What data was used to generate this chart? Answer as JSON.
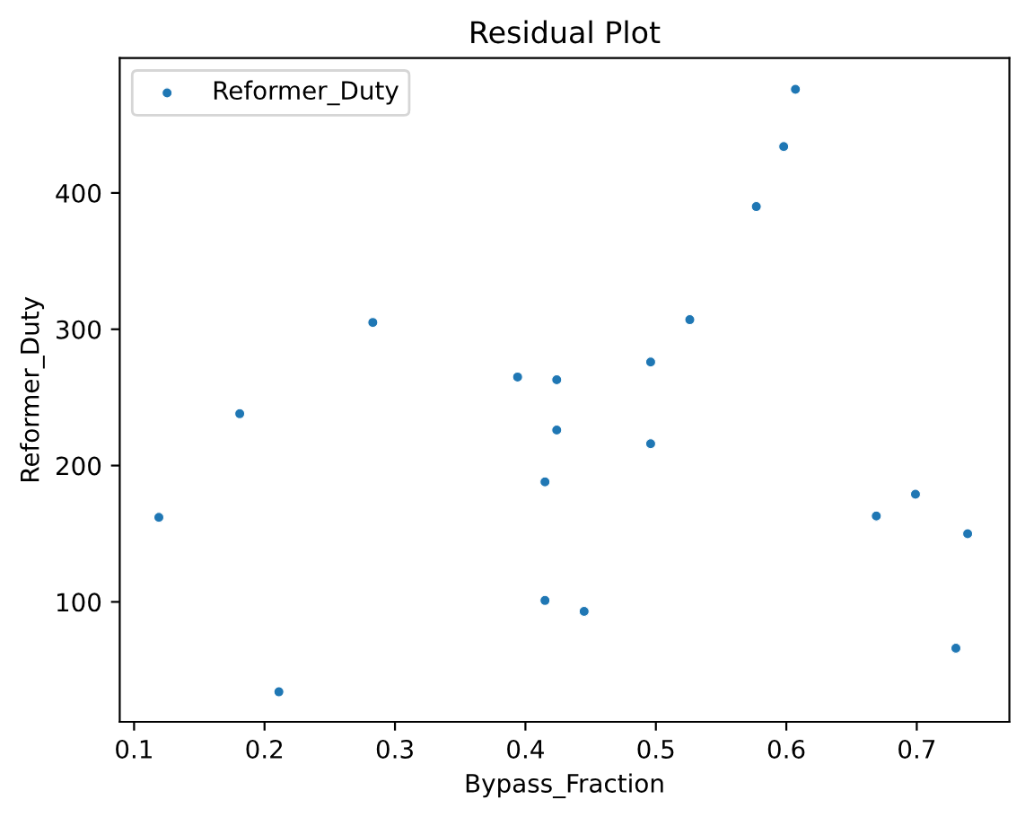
{
  "chart_data": {
    "type": "scatter",
    "title": "Residual Plot",
    "xlabel": "Bypass_Fraction",
    "ylabel": "Reformer_Duty",
    "series": [
      {
        "name": "Reformer_Duty",
        "color": "#1f77b4",
        "x": [
          0.119,
          0.181,
          0.211,
          0.283,
          0.394,
          0.415,
          0.424,
          0.424,
          0.415,
          0.445,
          0.496,
          0.496,
          0.526,
          0.577,
          0.598,
          0.607,
          0.669,
          0.699,
          0.739,
          0.73
        ],
        "values": [
          162,
          238,
          34,
          305,
          265,
          188,
          263,
          226,
          101,
          93,
          276,
          216,
          307,
          390,
          434,
          476,
          163,
          179,
          150,
          66
        ]
      }
    ],
    "xlim": [
      0.089,
      0.771
    ],
    "ylim": [
      12,
      499
    ],
    "xticks": [
      0.1,
      0.2,
      0.3,
      0.4,
      0.5,
      0.6,
      0.7
    ],
    "yticks": [
      100,
      200,
      300,
      400
    ],
    "grid": false,
    "legend": "top left",
    "marker": "circle"
  }
}
